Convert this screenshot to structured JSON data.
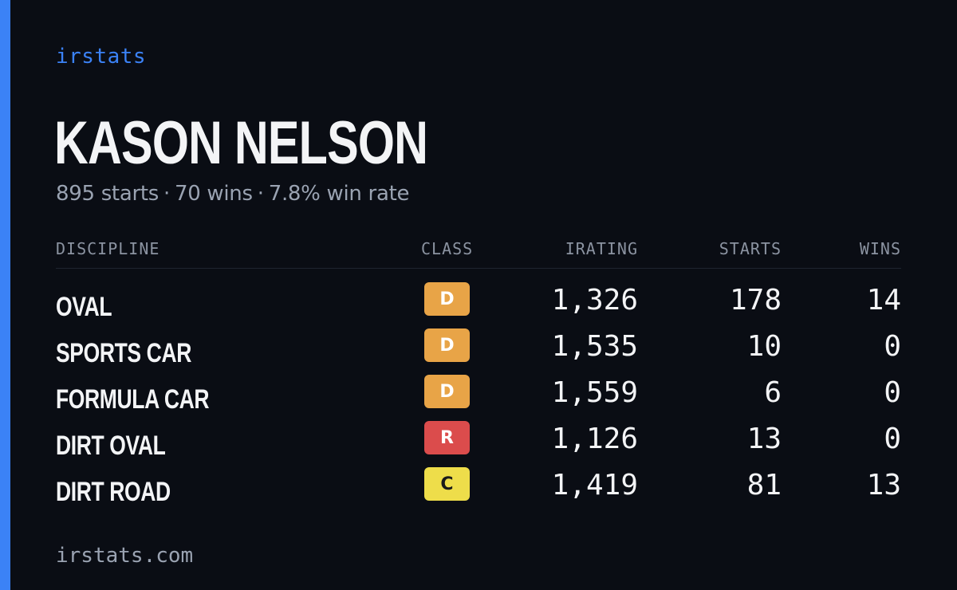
{
  "brand": "irstats",
  "driver": {
    "name": "KASON NELSON",
    "starts_text": "895 starts",
    "wins_text": "70 wins",
    "winrate_text": "7.8% win rate",
    "separator": "·"
  },
  "table": {
    "headers": {
      "discipline": "DISCIPLINE",
      "class": "CLASS",
      "irating": "IRATING",
      "starts": "STARTS",
      "wins": "WINS"
    },
    "rows": [
      {
        "discipline": "OVAL",
        "class": "D",
        "irating": "1,326",
        "starts": "178",
        "wins": "14"
      },
      {
        "discipline": "SPORTS CAR",
        "class": "D",
        "irating": "1,535",
        "starts": "10",
        "wins": "0"
      },
      {
        "discipline": "FORMULA CAR",
        "class": "D",
        "irating": "1,559",
        "starts": "6",
        "wins": "0"
      },
      {
        "discipline": "DIRT OVAL",
        "class": "R",
        "irating": "1,126",
        "starts": "13",
        "wins": "0"
      },
      {
        "discipline": "DIRT ROAD",
        "class": "C",
        "irating": "1,419",
        "starts": "81",
        "wins": "13"
      }
    ]
  },
  "class_colors": {
    "D": {
      "bg": "#e8a447",
      "fg": "#ffffff"
    },
    "R": {
      "bg": "#db4c4c",
      "fg": "#ffffff"
    },
    "C": {
      "bg": "#eedd4a",
      "fg": "#1a1a1a"
    }
  },
  "colors": {
    "accent": "#3b82f6",
    "background": "#0a0d14"
  },
  "footer": "irstats.com"
}
